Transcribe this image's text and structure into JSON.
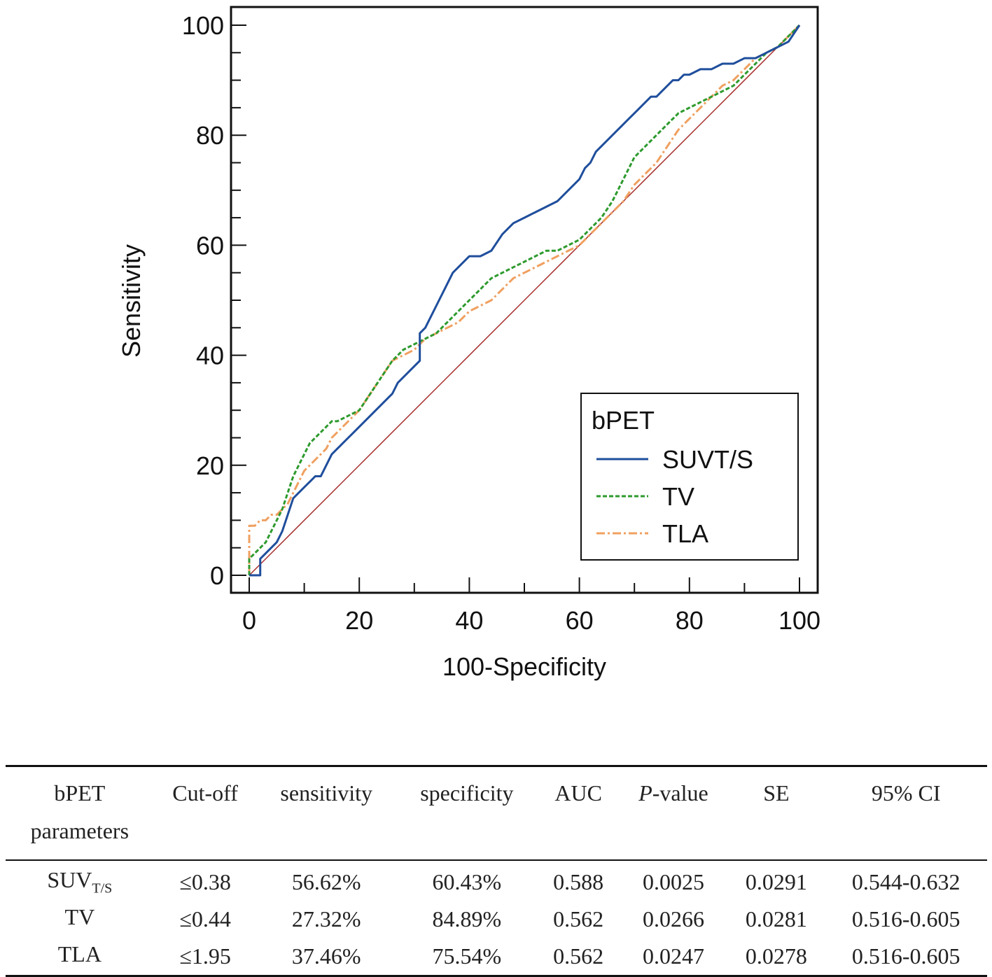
{
  "chart_data": {
    "type": "line",
    "xlabel": "100-Specificity",
    "ylabel": "Sensitivity",
    "xlim": [
      0,
      100
    ],
    "ylim": [
      0,
      100
    ],
    "xticks": [
      "0",
      "20",
      "40",
      "60",
      "80",
      "100"
    ],
    "yticks": [
      "0",
      "20",
      "40",
      "60",
      "80",
      "100"
    ],
    "legend_title": "bPET",
    "legend_position": "bottom-right",
    "series": [
      {
        "name": "SUVT/S",
        "color": "#1f4e9c",
        "style": "solid",
        "x": [
          0,
          2,
          2,
          3,
          4,
          5,
          6,
          7,
          8,
          9,
          10,
          11,
          12,
          13,
          14,
          15,
          16,
          17,
          18,
          19,
          20,
          21,
          22,
          23,
          24,
          25,
          26,
          27,
          28,
          29,
          30,
          31,
          31,
          32,
          33,
          34,
          35,
          36,
          37,
          38,
          39,
          40,
          42,
          44,
          46,
          48,
          50,
          52,
          54,
          56,
          58,
          60,
          61,
          62,
          63,
          64,
          65,
          66,
          67,
          68,
          69,
          70,
          71,
          72,
          73,
          74,
          75,
          76,
          77,
          78,
          79,
          80,
          82,
          84,
          86,
          88,
          90,
          92,
          94,
          96,
          98,
          100
        ],
        "y": [
          0,
          0,
          3,
          4,
          5,
          6,
          8,
          11,
          14,
          15,
          16,
          17,
          18,
          18,
          20,
          22,
          23,
          24,
          25,
          26,
          27,
          28,
          29,
          30,
          31,
          32,
          33,
          35,
          36,
          37,
          38,
          39,
          44,
          45,
          47,
          49,
          51,
          53,
          55,
          56,
          57,
          58,
          58,
          59,
          62,
          64,
          65,
          66,
          67,
          68,
          70,
          72,
          74,
          75,
          77,
          78,
          79,
          80,
          81,
          82,
          83,
          84,
          85,
          86,
          87,
          87,
          88,
          89,
          90,
          90,
          91,
          91,
          92,
          92,
          93,
          93,
          94,
          94,
          95,
          96,
          97,
          100
        ]
      },
      {
        "name": "TV",
        "color": "#2e9a2e",
        "style": "dashed",
        "x": [
          0,
          0,
          1,
          2,
          3,
          4,
          5,
          6,
          7,
          8,
          9,
          10,
          11,
          12,
          13,
          14,
          15,
          16,
          18,
          20,
          22,
          24,
          26,
          28,
          30,
          32,
          34,
          36,
          38,
          40,
          42,
          44,
          46,
          48,
          50,
          52,
          54,
          56,
          58,
          60,
          62,
          64,
          66,
          68,
          70,
          72,
          74,
          76,
          78,
          80,
          82,
          84,
          86,
          88,
          90,
          92,
          94,
          96,
          98,
          100
        ],
        "y": [
          0,
          3,
          4,
          5,
          6,
          8,
          10,
          12,
          15,
          18,
          20,
          22,
          24,
          25,
          26,
          27,
          28,
          28,
          29,
          30,
          33,
          36,
          39,
          41,
          42,
          43,
          44,
          46,
          48,
          50,
          52,
          54,
          55,
          56,
          57,
          58,
          59,
          59,
          60,
          61,
          63,
          65,
          68,
          72,
          76,
          78,
          80,
          82,
          84,
          85,
          86,
          87,
          88,
          89,
          91,
          93,
          95,
          96,
          98,
          100
        ]
      },
      {
        "name": "TLA",
        "color": "#f0a060",
        "style": "dash-dot",
        "x": [
          0,
          0,
          1,
          2,
          3,
          4,
          5,
          6,
          7,
          8,
          9,
          10,
          11,
          12,
          13,
          14,
          15,
          16,
          18,
          20,
          22,
          24,
          26,
          28,
          30,
          32,
          34,
          36,
          38,
          40,
          42,
          44,
          46,
          48,
          50,
          52,
          54,
          56,
          58,
          60,
          62,
          64,
          66,
          68,
          70,
          72,
          74,
          76,
          78,
          80,
          82,
          84,
          86,
          88,
          90,
          92,
          94,
          96,
          98,
          100
        ],
        "y": [
          0,
          9,
          9,
          10,
          10,
          11,
          11,
          12,
          13,
          15,
          17,
          19,
          20,
          21,
          22,
          23,
          25,
          26,
          28,
          30,
          33,
          36,
          39,
          40,
          41,
          43,
          44,
          45,
          46,
          48,
          49,
          50,
          52,
          54,
          55,
          56,
          57,
          58,
          59,
          60,
          62,
          64,
          66,
          68,
          71,
          73,
          75,
          78,
          81,
          83,
          85,
          87,
          89,
          90,
          92,
          94,
          95,
          96,
          98,
          100
        ]
      },
      {
        "name": "reference",
        "color": "#a52a2a",
        "style": "solid",
        "x": [
          0,
          100
        ],
        "y": [
          0,
          100
        ]
      }
    ]
  },
  "table": {
    "headers": [
      {
        "line1": "bPET",
        "line2": "parameters"
      },
      {
        "line1": "Cut-off"
      },
      {
        "line1": "sensitivity"
      },
      {
        "line1": "specificity"
      },
      {
        "line1": "AUC"
      },
      {
        "line1": "P",
        "line1_suffix": "-value"
      },
      {
        "line1": "SE"
      },
      {
        "line1": "95% CI"
      }
    ],
    "rows": [
      {
        "param_main": "SUV",
        "param_sub": "T/S",
        "cutoff": "≤0.38",
        "sensitivity": "56.62%",
        "specificity": "60.43%",
        "auc": "0.588",
        "p_value": "0.0025",
        "se": "0.0291",
        "ci": "0.544-0.632"
      },
      {
        "param_main": "TV",
        "param_sub": "",
        "cutoff": "≤0.44",
        "sensitivity": "27.32%",
        "specificity": "84.89%",
        "auc": "0.562",
        "p_value": "0.0266",
        "se": "0.0281",
        "ci": "0.516-0.605"
      },
      {
        "param_main": "TLA",
        "param_sub": "",
        "cutoff": "≤1.95",
        "sensitivity": "37.46%",
        "specificity": "75.54%",
        "auc": "0.562",
        "p_value": "0.0247",
        "se": "0.0278",
        "ci": "0.516-0.605"
      }
    ]
  }
}
